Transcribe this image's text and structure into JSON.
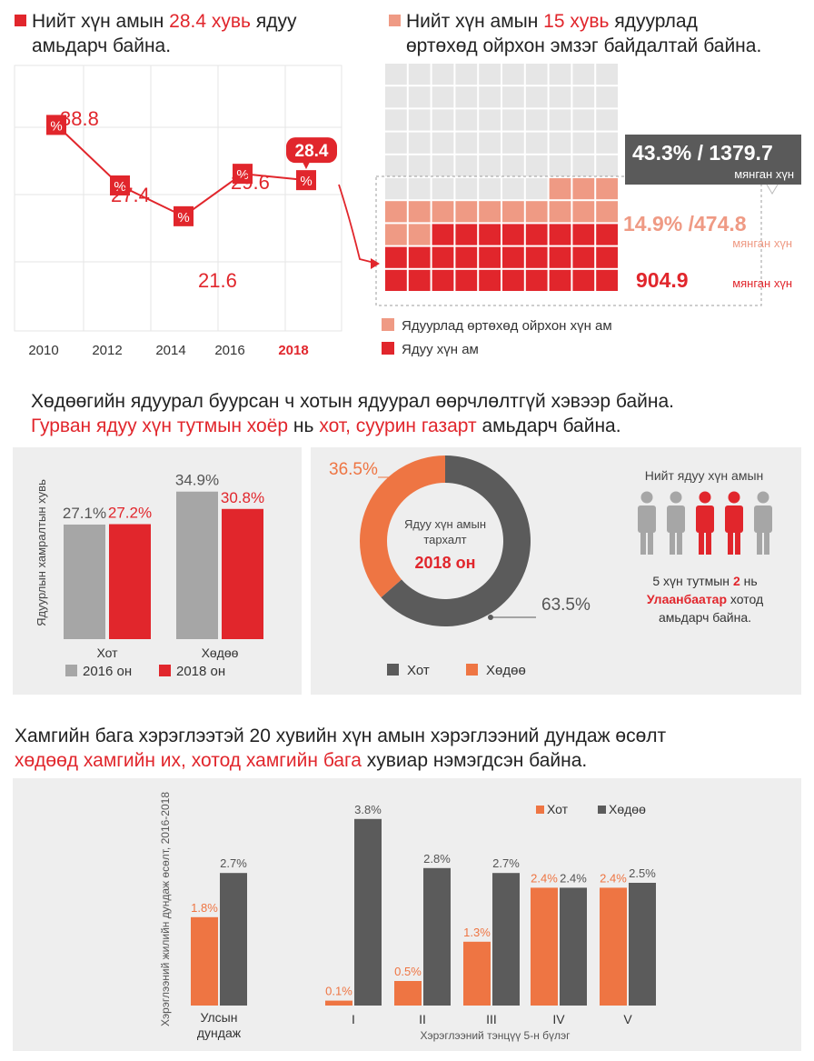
{
  "section1": {
    "left_title_1": "Нийт хүн амын",
    "left_title_hl": "28.4 хувь",
    "left_title_2": "ядуу",
    "left_title_3": "амьдарч байна.",
    "right_title_1": "Нийт хүн амын",
    "right_title_hl": "15 хувь",
    "right_title_2": "ядуурлад",
    "right_title_3": "өртөхөд ойрхон эмзэг байдалтай байна.",
    "pct_icon": "%",
    "callout_total": "43.3% / 1379.7",
    "callout_total_unit": "мянган хүн",
    "callout_near": "14.9% /474.8",
    "callout_near_unit": "мянган хүн",
    "callout_poor": "904.9",
    "callout_poor_unit": "мянган хүн",
    "legend_near": "Ядуурлад өртөхөд ойрхон хүн ам",
    "legend_poor": "Ядуу хүн ам",
    "colors": {
      "red": "#e1262c",
      "salmon": "#ef9a84",
      "grid": "#e6e6e6",
      "dark": "#5a5a5a"
    }
  },
  "section2": {
    "title_1": "Хөдөөгийн ядуурал буурсан ч хотын ядуурал өөрчлөлтгүй хэвээр байна.",
    "title_hl": "Гурван ядуу хүн тутмын хоёр",
    "title_2": "нь",
    "title_hl2": "хот, суурин газарт",
    "title_3": "амьдарч байна.",
    "bar_legend_2016": "2016 он",
    "bar_legend_2018": "2018 он",
    "donut_center_1": "Ядуу хүн амын",
    "donut_center_2": "тархалт",
    "donut_center_3": "2018 он",
    "donut_legend_city": "Хот",
    "donut_legend_rural": "Хөдөө",
    "people_title": "Нийт ядуу хүн амын",
    "people_text_1": "5 хүн тутмын",
    "people_text_num": "2",
    "people_text_2": "нь",
    "people_text_city": "Улаанбаатар",
    "people_text_3": "хотод",
    "people_text_4": "амьдарч байна.",
    "colors": {
      "gray": "#a6a6a6",
      "red": "#e1262c",
      "dark": "#5b5b5b",
      "orange": "#ee7543"
    }
  },
  "section3": {
    "title_1": "Хамгийн бага хэрэглээтэй 20 хувийн хүн амын хэрэглээний дундаж өсөлт",
    "title_hl": "хөдөөд хамгийн их, хотод хамгийн бага",
    "title_2": "хувиар нэмэгдсэн байна.",
    "colors": {
      "orange": "#ee7543",
      "dark": "#5b5b5b"
    }
  },
  "chart_data": [
    {
      "type": "line",
      "x": [
        "2010",
        "2012",
        "2014",
        "2016",
        "2018"
      ],
      "values": [
        38.8,
        27.4,
        21.6,
        29.6,
        28.4
      ],
      "labels": [
        "38.8",
        "27.4",
        "21.6",
        "29.6",
        "28.4"
      ],
      "ylim": [
        0,
        50
      ]
    },
    {
      "type": "waffle",
      "total": 100,
      "series": [
        {
          "name": "Ядуу хүн ам",
          "value": 28.4
        },
        {
          "name": "Ядуурлад өртөхөд ойрхон хүн ам",
          "value": 14.9
        }
      ]
    },
    {
      "type": "bar",
      "categories": [
        "Хот",
        "Хөдөө"
      ],
      "series": [
        {
          "name": "2016 он",
          "values": [
            27.1,
            34.9
          ],
          "labels": [
            "27.1%",
            "34.9%"
          ]
        },
        {
          "name": "2018 он",
          "values": [
            27.2,
            30.8
          ],
          "labels": [
            "27.2%",
            "30.8%"
          ]
        }
      ],
      "ylabel": "Ядуурлын хамралтын хувь",
      "ylim": [
        0,
        40
      ]
    },
    {
      "type": "pie",
      "categories": [
        "Хот",
        "Хөдөө"
      ],
      "values": [
        63.5,
        36.5
      ],
      "labels": [
        "63.5%",
        "36.5%"
      ]
    },
    {
      "type": "bar",
      "categories": [
        "Улсын дундаж",
        "I",
        "II",
        "III",
        "IV",
        "V"
      ],
      "series": [
        {
          "name": "Хот",
          "values": [
            1.8,
            0.1,
            0.5,
            1.3,
            2.4,
            2.4
          ],
          "labels": [
            "1.8%",
            "0.1%",
            "0.5%",
            "1.3%",
            "2.4%",
            "2.4%"
          ]
        },
        {
          "name": "Хөдөө",
          "values": [
            2.7,
            3.8,
            2.8,
            2.7,
            2.4,
            2.5
          ],
          "labels": [
            "2.7%",
            "3.8%",
            "2.8%",
            "2.7%",
            "2.4%",
            "2.5%"
          ]
        }
      ],
      "ylabel": "Хэрэглээний жилийн дундаж өсөлт, 2016-2018",
      "xlabel": "Хэрэглээний тэнцүү 5-н бүлэг",
      "ylim": [
        0,
        4
      ]
    }
  ]
}
